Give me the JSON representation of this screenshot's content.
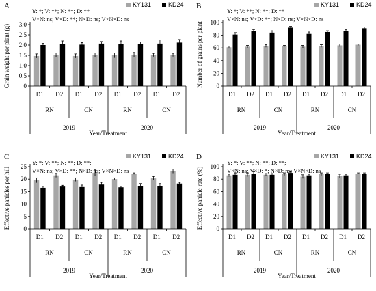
{
  "chart_data": [
    {
      "type": "bar",
      "panel_letter": "A",
      "ylabel": "Grain weight per plant (g)",
      "xlabel": "Year/Treatment",
      "ylim": [
        0,
        3.0
      ],
      "ytick_labels": [
        "0",
        "0.5",
        "1.0",
        "1.5",
        "2.0",
        "2.5",
        "3.0"
      ],
      "categories": [
        "D1",
        "D2",
        "D1",
        "D2",
        "D1",
        "D2",
        "D1",
        "D2"
      ],
      "nitrogen_groups": [
        "RN",
        "CN",
        "RN",
        "CN"
      ],
      "year_groups": [
        "2019",
        "2020"
      ],
      "stats": [
        "Y: *; V: **; N: **; D: **",
        "V×N: ns; V×D: **; N×D: ns; V×N×D: ns"
      ],
      "series": [
        {
          "name": "KY131",
          "color": "#a6a6a6",
          "values": [
            1.47,
            1.52,
            1.47,
            1.52,
            1.5,
            1.52,
            1.52,
            1.52
          ],
          "errors": [
            0.1,
            0.1,
            0.1,
            0.1,
            0.12,
            0.12,
            0.08,
            0.08
          ]
        },
        {
          "name": "KD24",
          "color": "#000000",
          "values": [
            2.0,
            2.05,
            2.02,
            2.07,
            2.05,
            2.05,
            2.07,
            2.12
          ],
          "errors": [
            0.08,
            0.15,
            0.1,
            0.1,
            0.15,
            0.1,
            0.18,
            0.15
          ]
        }
      ]
    },
    {
      "type": "bar",
      "panel_letter": "B",
      "ylabel": "Number of grains per plant",
      "xlabel": "Year/Treatment",
      "ylim": [
        0,
        100
      ],
      "ytick_labels": [
        "0",
        "20",
        "40",
        "60",
        "80",
        "100"
      ],
      "categories": [
        "D1",
        "D2",
        "D1",
        "D2",
        "D1",
        "D2",
        "D1",
        "D2"
      ],
      "nitrogen_groups": [
        "RN",
        "CN",
        "RN",
        "CN"
      ],
      "year_groups": [
        "2019",
        "2020"
      ],
      "stats": [
        "Y: *; V: **; N: **; D: **",
        "V×N: ns; V×D: **; N×D: ns; V×N×D: ns"
      ],
      "series": [
        {
          "name": "KY131",
          "color": "#a6a6a6",
          "values": [
            61,
            62,
            63,
            63,
            62,
            63,
            64,
            65
          ],
          "errors": [
            2,
            2,
            2,
            1,
            2,
            2,
            2,
            1
          ]
        },
        {
          "name": "KD24",
          "color": "#000000",
          "values": [
            81,
            87,
            84,
            92,
            82,
            85,
            87,
            91
          ],
          "errors": [
            3,
            2,
            3,
            2,
            3,
            2,
            2,
            2
          ]
        }
      ]
    },
    {
      "type": "bar",
      "panel_letter": "C",
      "ylabel": "Effective panicles per hill",
      "xlabel": "Year/Treatment",
      "ylim": [
        0,
        25
      ],
      "ytick_labels": [
        "0",
        "5",
        "10",
        "15",
        "20",
        "25"
      ],
      "categories": [
        "D1",
        "D2",
        "D1",
        "D2",
        "D1",
        "D2",
        "D1",
        "D2"
      ],
      "nitrogen_groups": [
        "RN",
        "CN",
        "RN",
        "CN"
      ],
      "year_groups": [
        "2019",
        "2020"
      ],
      "stats": [
        "Y: *; V: **; N: **; D: **;",
        "V×N: ns; V×D: **; N×D: ns; V×N×D: ns"
      ],
      "series": [
        {
          "name": "KY131",
          "color": "#a6a6a6",
          "values": [
            19.5,
            21.5,
            19.8,
            22.5,
            20.0,
            22.2,
            20.3,
            23.2
          ],
          "errors": [
            1.0,
            0.8,
            0.7,
            1.2,
            0.5,
            0.3,
            0.8,
            0.8
          ]
        },
        {
          "name": "KD24",
          "color": "#000000",
          "values": [
            16.5,
            17.0,
            16.8,
            17.8,
            16.7,
            17.2,
            17.3,
            18.2
          ],
          "errors": [
            0.6,
            0.5,
            0.8,
            0.9,
            0.4,
            1.0,
            0.9,
            0.5
          ]
        }
      ]
    },
    {
      "type": "bar",
      "panel_letter": "D",
      "ylabel": "Effective panicle rate (%)",
      "xlabel": "Year/Treatment",
      "ylim": [
        0,
        100
      ],
      "ytick_labels": [
        "0",
        "20",
        "40",
        "60",
        "80",
        "100"
      ],
      "categories": [
        "D1",
        "D2",
        "D1",
        "D2",
        "D1",
        "D2",
        "D1",
        "D2"
      ],
      "nitrogen_groups": [
        "RN",
        "CN",
        "RN",
        "CN"
      ],
      "year_groups": [
        "2019",
        "2020"
      ],
      "stats": [
        "Y: *; V: **; N: **; D: **;",
        "V×N: ns; V×D: *; N×D: ns; V×N×D: ns"
      ],
      "series": [
        {
          "name": "KY131",
          "color": "#a6a6a6",
          "values": [
            86,
            87,
            87,
            88,
            84,
            88,
            85,
            89
          ],
          "errors": [
            2,
            3,
            2,
            2,
            3,
            2,
            3,
            1
          ]
        },
        {
          "name": "KD24",
          "color": "#000000",
          "values": [
            87,
            89,
            87,
            90,
            86,
            88,
            86,
            89
          ],
          "errors": [
            3,
            3,
            2,
            2,
            2,
            2,
            2,
            1
          ]
        }
      ]
    }
  ]
}
